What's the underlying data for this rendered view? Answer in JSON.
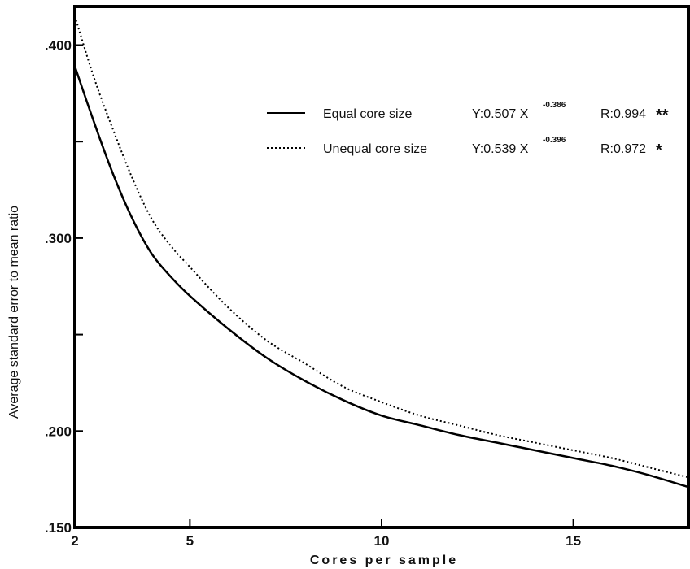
{
  "chart_data": {
    "type": "line",
    "xlabel": "Cores per sample",
    "ylabel": "Average standard error to mean ratio",
    "xlim": [
      2,
      18
    ],
    "ylim": [
      0.15,
      0.42
    ],
    "xticks": [
      {
        "value": 2,
        "label": "2"
      },
      {
        "value": 5,
        "label": "5"
      },
      {
        "value": 10,
        "label": "10"
      },
      {
        "value": 15,
        "label": "15"
      }
    ],
    "yticks": [
      {
        "value": 0.15,
        "label": ".150"
      },
      {
        "value": 0.2,
        "label": ".200"
      },
      {
        "value": 0.25,
        "label": ""
      },
      {
        "value": 0.3,
        "label": ".300"
      },
      {
        "value": 0.35,
        "label": ""
      },
      {
        "value": 0.4,
        "label": ".400"
      }
    ],
    "series": [
      {
        "name": "Equal core size",
        "line_style": "solid",
        "equation": "Y:0.507 X",
        "exponent": "-0.386",
        "r_text": "R:0.994",
        "significance": "**",
        "x": [
          2,
          2.5,
          3,
          3.5,
          4,
          4.5,
          5,
          6,
          7,
          8,
          9,
          10,
          11,
          12,
          13,
          14,
          15,
          16,
          17,
          18
        ],
        "y": [
          0.389,
          0.36,
          0.333,
          0.31,
          0.292,
          0.28,
          0.27,
          0.253,
          0.238,
          0.226,
          0.216,
          0.208,
          0.203,
          0.198,
          0.194,
          0.19,
          0.186,
          0.182,
          0.177,
          0.171
        ]
      },
      {
        "name": "Unequal core size",
        "line_style": "dotted",
        "equation": "Y:0.539 X",
        "exponent": "-0.396",
        "r_text": "R:0.972",
        "significance": "*",
        "x": [
          2,
          2.5,
          3,
          3.5,
          4,
          4.5,
          5,
          6,
          7,
          8,
          9,
          10,
          11,
          12,
          13,
          14,
          15,
          16,
          17,
          18
        ],
        "y": [
          0.415,
          0.383,
          0.356,
          0.331,
          0.31,
          0.296,
          0.285,
          0.264,
          0.247,
          0.235,
          0.223,
          0.215,
          0.208,
          0.203,
          0.198,
          0.194,
          0.19,
          0.186,
          0.181,
          0.176
        ]
      }
    ],
    "legend_position": "top-right",
    "grid": false
  }
}
